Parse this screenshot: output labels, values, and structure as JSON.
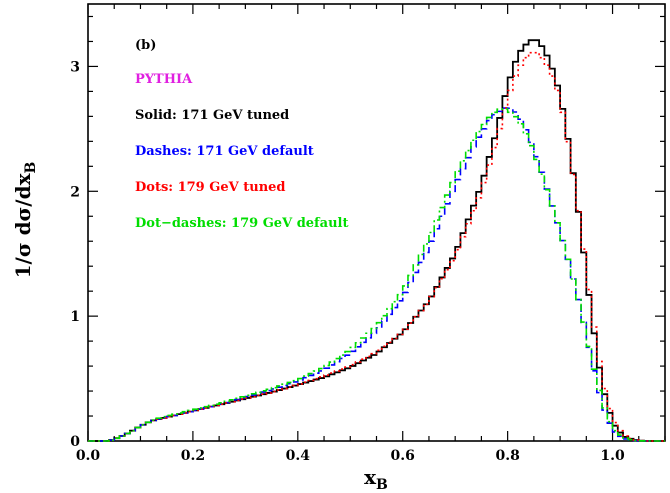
{
  "chart_data": {
    "type": "line",
    "panel_label": "(b)",
    "generator_label": "PYTHIA",
    "generator_color": "#e020e0",
    "xlabel": {
      "main": "x",
      "sub": "B"
    },
    "ylabel": {
      "main": "1/σ dσ/dx",
      "sub": "B"
    },
    "xlim": [
      0.0,
      1.1
    ],
    "ylim": [
      0,
      3.5
    ],
    "xticks": [
      0.0,
      0.2,
      0.4,
      0.6,
      0.8,
      1.0
    ],
    "xtick_labels": [
      "0.0",
      "0.2",
      "0.4",
      "0.6",
      "0.8",
      "1.0"
    ],
    "yticks": [
      0,
      1,
      2,
      3
    ],
    "ytick_labels": [
      "0",
      "1",
      "2",
      "3"
    ],
    "grid": false,
    "legend_position": "top-left",
    "series": [
      {
        "name": "Solid: 171 GeV tuned",
        "color": "#000000",
        "style": "solid",
        "x": [
          0.04,
          0.06,
          0.08,
          0.1,
          0.12,
          0.14,
          0.16,
          0.2,
          0.25,
          0.3,
          0.35,
          0.4,
          0.45,
          0.5,
          0.55,
          0.6,
          0.65,
          0.7,
          0.75,
          0.78,
          0.8,
          0.82,
          0.84,
          0.85,
          0.86,
          0.88,
          0.9,
          0.92,
          0.94,
          0.96,
          0.98,
          1.0,
          1.02,
          1.04,
          1.06
        ],
        "y": [
          0.0,
          0.03,
          0.07,
          0.12,
          0.16,
          0.18,
          0.2,
          0.24,
          0.29,
          0.34,
          0.39,
          0.45,
          0.51,
          0.59,
          0.7,
          0.87,
          1.12,
          1.5,
          2.05,
          2.5,
          2.85,
          3.1,
          3.2,
          3.22,
          3.2,
          3.05,
          2.78,
          2.3,
          1.68,
          1.0,
          0.45,
          0.15,
          0.04,
          0.01,
          0.0
        ]
      },
      {
        "name": "Dashes: 171 GeV default",
        "color": "#0000ff",
        "style": "dashed",
        "x": [
          0.04,
          0.06,
          0.08,
          0.1,
          0.12,
          0.14,
          0.16,
          0.2,
          0.25,
          0.3,
          0.35,
          0.4,
          0.45,
          0.5,
          0.55,
          0.6,
          0.65,
          0.7,
          0.74,
          0.77,
          0.8,
          0.82,
          0.84,
          0.86,
          0.88,
          0.9,
          0.92,
          0.94,
          0.96,
          0.98,
          1.0,
          1.02,
          1.04,
          1.06
        ],
        "y": [
          0.0,
          0.03,
          0.07,
          0.12,
          0.16,
          0.18,
          0.2,
          0.24,
          0.29,
          0.35,
          0.41,
          0.48,
          0.57,
          0.7,
          0.88,
          1.15,
          1.55,
          2.05,
          2.4,
          2.6,
          2.68,
          2.62,
          2.45,
          2.22,
          1.95,
          1.68,
          1.38,
          1.05,
          0.65,
          0.3,
          0.09,
          0.02,
          0.005,
          0.0
        ]
      },
      {
        "name": "Dots: 179 GeV tuned",
        "color": "#ff0000",
        "style": "dotted",
        "x": [
          0.04,
          0.06,
          0.08,
          0.1,
          0.12,
          0.14,
          0.16,
          0.2,
          0.25,
          0.3,
          0.35,
          0.4,
          0.45,
          0.5,
          0.55,
          0.6,
          0.65,
          0.7,
          0.75,
          0.78,
          0.8,
          0.82,
          0.84,
          0.85,
          0.86,
          0.88,
          0.9,
          0.92,
          0.94,
          0.96,
          0.98,
          1.0,
          1.02,
          1.04,
          1.06
        ],
        "y": [
          0.0,
          0.03,
          0.07,
          0.12,
          0.16,
          0.18,
          0.2,
          0.24,
          0.29,
          0.34,
          0.39,
          0.45,
          0.52,
          0.6,
          0.71,
          0.87,
          1.12,
          1.48,
          2.0,
          2.42,
          2.75,
          2.98,
          3.1,
          3.12,
          3.1,
          2.98,
          2.75,
          2.28,
          1.7,
          1.05,
          0.5,
          0.18,
          0.05,
          0.01,
          0.0
        ]
      },
      {
        "name": "Dot−dashes: 179 GeV default",
        "color": "#00dd00",
        "style": "dotdash",
        "x": [
          0.04,
          0.06,
          0.08,
          0.1,
          0.12,
          0.14,
          0.16,
          0.2,
          0.25,
          0.3,
          0.35,
          0.4,
          0.45,
          0.5,
          0.55,
          0.6,
          0.65,
          0.7,
          0.74,
          0.77,
          0.79,
          0.8,
          0.82,
          0.84,
          0.86,
          0.88,
          0.9,
          0.92,
          0.94,
          0.96,
          0.98,
          1.0,
          1.02,
          1.04,
          1.06
        ],
        "y": [
          0.0,
          0.03,
          0.07,
          0.12,
          0.16,
          0.19,
          0.21,
          0.25,
          0.3,
          0.36,
          0.42,
          0.49,
          0.59,
          0.73,
          0.92,
          1.2,
          1.62,
          2.12,
          2.45,
          2.62,
          2.67,
          2.65,
          2.58,
          2.42,
          2.2,
          1.95,
          1.68,
          1.38,
          1.05,
          0.66,
          0.32,
          0.1,
          0.03,
          0.005,
          0.0
        ]
      }
    ]
  }
}
